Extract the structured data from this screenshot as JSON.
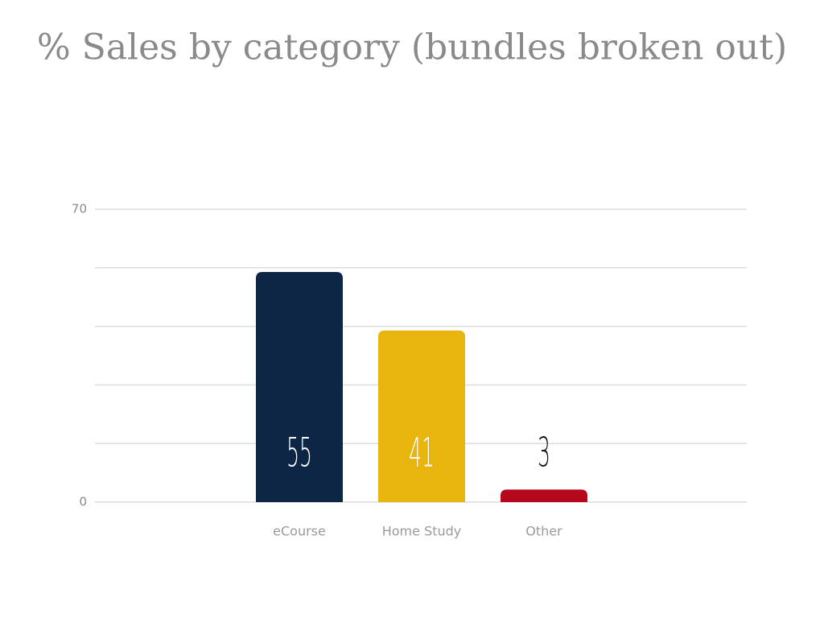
{
  "chart_data": {
    "type": "bar",
    "title": "% Sales by category (bundles broken out)",
    "categories": [
      "eCourse",
      "Home Study",
      "Other"
    ],
    "values": [
      55,
      41,
      3
    ],
    "colors": [
      "#0d2646",
      "#e8b50e",
      "#b5081c"
    ],
    "ylim": [
      0,
      70
    ],
    "yticks": [
      0,
      70
    ],
    "minor_yticks": [
      14,
      28,
      42,
      56
    ],
    "grid": true
  }
}
